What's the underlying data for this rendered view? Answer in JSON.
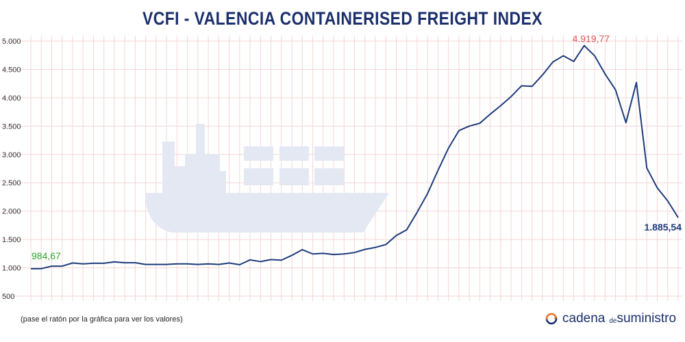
{
  "title": "VCFI - VALENCIA CONTAINERISED FREIGHT INDEX",
  "hint": "(pase el ratón por la gráfica para ver los valores)",
  "brand": {
    "part1": "cadena",
    "part2": "de",
    "part3": "suministro"
  },
  "colors": {
    "line": "#1b3a7a",
    "grid": "#f4d6d4",
    "tick": "#333333",
    "first_label": "#2aa52a",
    "max_label": "#e05555",
    "last_label": "#1b3a7a",
    "ship": "#e3e8f2"
  },
  "chart_data": {
    "type": "line",
    "title": "VCFI - VALENCIA CONTAINERISED FREIGHT INDEX",
    "xlabel": "",
    "ylabel": "",
    "ylim": [
      500,
      5000
    ],
    "yticks": [
      500,
      1000,
      1500,
      2000,
      2500,
      3000,
      3500,
      4000,
      4500,
      5000
    ],
    "ytick_labels": [
      "500",
      "1.000",
      "1.500",
      "2.000",
      "2.500",
      "3.000",
      "3.500",
      "4.000",
      "4.500",
      "5.000"
    ],
    "grid": true,
    "series": [
      {
        "values": [
          984.67,
          985,
          1030,
          1030,
          1085,
          1070,
          1080,
          1080,
          1105,
          1090,
          1090,
          1060,
          1060,
          1060,
          1070,
          1070,
          1060,
          1070,
          1060,
          1085,
          1055,
          1140,
          1110,
          1145,
          1135,
          1220,
          1320,
          1245,
          1255,
          1235,
          1245,
          1270,
          1325,
          1360,
          1410,
          1570,
          1670,
          1980,
          2310,
          2720,
          3110,
          3420,
          3500,
          3550,
          3710,
          3860,
          4020,
          4210,
          4200,
          4400,
          4630,
          4740,
          4640,
          4919.77,
          4740,
          4420,
          4140,
          3560,
          4270,
          2760,
          2410,
          2180,
          1885.54
        ]
      }
    ],
    "annotations": [
      {
        "index": 0,
        "text": "984,67",
        "kind": "first"
      },
      {
        "index": 53,
        "text": "4.919,77",
        "kind": "max"
      },
      {
        "index": 62,
        "text": "1.885,54",
        "kind": "last"
      }
    ]
  }
}
